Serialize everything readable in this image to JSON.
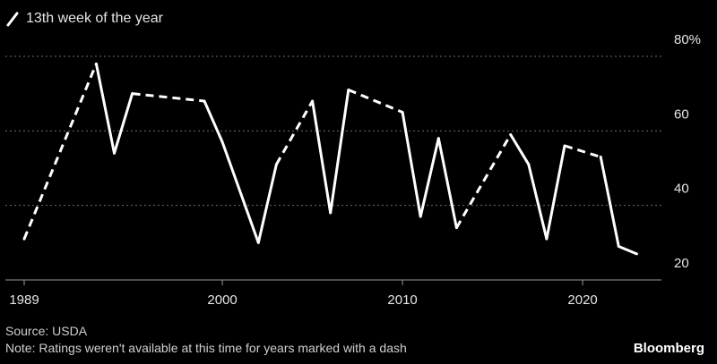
{
  "legend": {
    "label": "13th week of the year"
  },
  "footer": {
    "source": "Source: USDA",
    "note": "Note: Ratings weren't available at this time for years marked with a dash",
    "brand": "Bloomberg"
  },
  "colors": {
    "background": "#000000",
    "line": "#ffffff",
    "grid": "#6e6e6e",
    "text": "#e6e6e6"
  },
  "chart_data": {
    "type": "line",
    "series": [
      {
        "name": "13th week of the year",
        "points": [
          {
            "x": 1989,
            "y": 31,
            "d": true
          },
          {
            "x": 1993,
            "y": 78,
            "d": true
          },
          {
            "x": 1994,
            "y": 54,
            "d": false
          },
          {
            "x": 1995,
            "y": 70,
            "d": false
          },
          {
            "x": 1999,
            "y": 68,
            "d": true
          },
          {
            "x": 2000,
            "y": 57,
            "d": false
          },
          {
            "x": 2002,
            "y": 30,
            "d": false
          },
          {
            "x": 2003,
            "y": 51,
            "d": false
          },
          {
            "x": 2005,
            "y": 68,
            "d": true
          },
          {
            "x": 2006,
            "y": 38,
            "d": false
          },
          {
            "x": 2007,
            "y": 71,
            "d": false
          },
          {
            "x": 2010,
            "y": 65,
            "d": true
          },
          {
            "x": 2011,
            "y": 37,
            "d": false
          },
          {
            "x": 2012,
            "y": 58,
            "d": false
          },
          {
            "x": 2013,
            "y": 34,
            "d": false
          },
          {
            "x": 2016,
            "y": 59,
            "d": true
          },
          {
            "x": 2017,
            "y": 51,
            "d": false
          },
          {
            "x": 2018,
            "y": 31,
            "d": false
          },
          {
            "x": 2019,
            "y": 56,
            "d": false
          },
          {
            "x": 2021,
            "y": 53,
            "d": true
          },
          {
            "x": 2022,
            "y": 29,
            "d": false
          },
          {
            "x": 2023,
            "y": 27,
            "d": false
          }
        ]
      }
    ],
    "x_ticks": [
      1989,
      2000,
      2010,
      2020
    ],
    "y_ticks": [
      20,
      40,
      60,
      80
    ],
    "y_tick_labels": [
      "20",
      "40",
      "60",
      "80%"
    ],
    "xlim": [
      1989,
      2024
    ],
    "ylim": [
      20,
      80
    ],
    "grid": true,
    "grid_style": "dotted",
    "y_axis_side": "right"
  }
}
